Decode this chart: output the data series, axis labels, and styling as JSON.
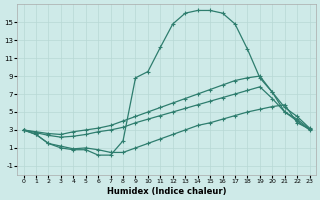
{
  "xlabel": "Humidex (Indice chaleur)",
  "bg_color": "#ceeae8",
  "line_color": "#2e7d6e",
  "grid_color": "#b8d8d5",
  "x_ticks": [
    0,
    1,
    2,
    3,
    4,
    5,
    6,
    7,
    8,
    9,
    10,
    11,
    12,
    13,
    14,
    15,
    16,
    17,
    18,
    19,
    20,
    21,
    22,
    23
  ],
  "y_ticks": [
    -1,
    1,
    3,
    5,
    7,
    9,
    11,
    13,
    15
  ],
  "xlim": [
    -0.5,
    23.5
  ],
  "ylim": [
    -2.0,
    17.0
  ],
  "curve_main_x": [
    0,
    1,
    2,
    3,
    4,
    5,
    6,
    7,
    8,
    9,
    10,
    11,
    12,
    13,
    14,
    15,
    16,
    17,
    18,
    19,
    20,
    21,
    22,
    23
  ],
  "curve_main_y": [
    3.0,
    2.5,
    1.5,
    1.0,
    0.8,
    0.8,
    0.2,
    0.2,
    1.8,
    8.8,
    9.5,
    12.2,
    14.8,
    16.0,
    16.3,
    16.3,
    16.0,
    14.8,
    12.0,
    8.8,
    7.2,
    5.0,
    4.0,
    3.0
  ],
  "curve_upper_x": [
    0,
    1,
    2,
    3,
    4,
    5,
    6,
    7,
    8,
    9,
    10,
    11,
    12,
    13,
    14,
    15,
    16,
    17,
    18,
    19,
    20,
    21,
    22,
    23
  ],
  "curve_upper_y": [
    3.0,
    2.8,
    2.6,
    2.5,
    2.8,
    3.0,
    3.2,
    3.5,
    4.0,
    4.5,
    5.0,
    5.5,
    6.0,
    6.5,
    7.0,
    7.5,
    8.0,
    8.5,
    8.8,
    9.0,
    7.2,
    5.5,
    4.5,
    3.2
  ],
  "curve_mid_x": [
    0,
    1,
    2,
    3,
    4,
    5,
    6,
    7,
    8,
    9,
    10,
    11,
    12,
    13,
    14,
    15,
    16,
    17,
    18,
    19,
    20,
    21,
    22,
    23
  ],
  "curve_mid_y": [
    3.0,
    2.7,
    2.4,
    2.2,
    2.3,
    2.5,
    2.8,
    3.0,
    3.3,
    3.8,
    4.2,
    4.6,
    5.0,
    5.4,
    5.8,
    6.2,
    6.6,
    7.0,
    7.4,
    7.8,
    6.5,
    5.0,
    4.2,
    3.1
  ],
  "curve_bot_x": [
    0,
    1,
    2,
    3,
    4,
    5,
    6,
    7,
    8,
    9,
    10,
    11,
    12,
    13,
    14,
    15,
    16,
    17,
    18,
    19,
    20,
    21,
    22,
    23
  ],
  "curve_bot_y": [
    3.0,
    2.5,
    1.5,
    1.2,
    0.9,
    1.0,
    0.8,
    0.5,
    0.5,
    1.0,
    1.5,
    2.0,
    2.5,
    3.0,
    3.5,
    3.8,
    4.2,
    4.6,
    5.0,
    5.3,
    5.6,
    5.8,
    3.8,
    3.1
  ]
}
